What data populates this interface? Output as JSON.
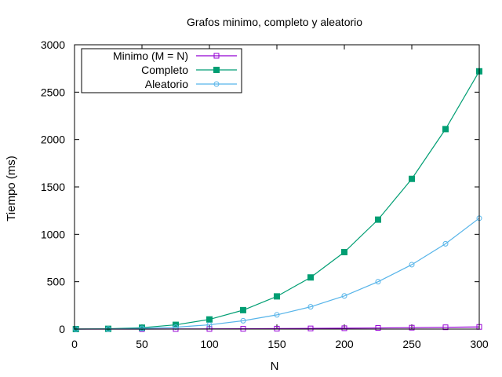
{
  "chart_data": {
    "type": "line",
    "title": "Grafos minimo, completo y  aleatorio",
    "xlabel": "N",
    "ylabel": "Tiempo (ms)",
    "xlim": [
      0,
      300
    ],
    "ylim": [
      0,
      3000
    ],
    "xticks": [
      "0",
      "50",
      "100",
      "150",
      "200",
      "250",
      "300"
    ],
    "yticks": [
      "0",
      "500",
      "1000",
      "1500",
      "2000",
      "2500",
      "3000"
    ],
    "grid": false,
    "legend": "top-left",
    "series": [
      {
        "name": "Minimo (M = N)",
        "color": "#9400d3",
        "marker": "open-square",
        "x": [
          1,
          25,
          50,
          75,
          100,
          125,
          150,
          175,
          200,
          225,
          250,
          275,
          300
        ],
        "y": [
          0,
          0,
          0,
          1,
          2,
          3,
          5,
          7,
          9,
          12,
          15,
          19,
          23
        ]
      },
      {
        "name": "Completo",
        "color": "#009e73",
        "marker": "filled-square",
        "x": [
          1,
          25,
          50,
          75,
          100,
          125,
          150,
          175,
          200,
          225,
          250,
          275,
          300
        ],
        "y": [
          0,
          3,
          15,
          45,
          102,
          200,
          345,
          545,
          812,
          1155,
          1585,
          2110,
          2720
        ]
      },
      {
        "name": "Aleatorio",
        "color": "#56b4e9",
        "marker": "open-circle",
        "x": [
          1,
          25,
          50,
          75,
          100,
          125,
          150,
          175,
          200,
          225,
          250,
          275,
          300
        ],
        "y": [
          0,
          1,
          7,
          20,
          45,
          88,
          150,
          235,
          350,
          500,
          680,
          900,
          1170
        ]
      }
    ]
  }
}
